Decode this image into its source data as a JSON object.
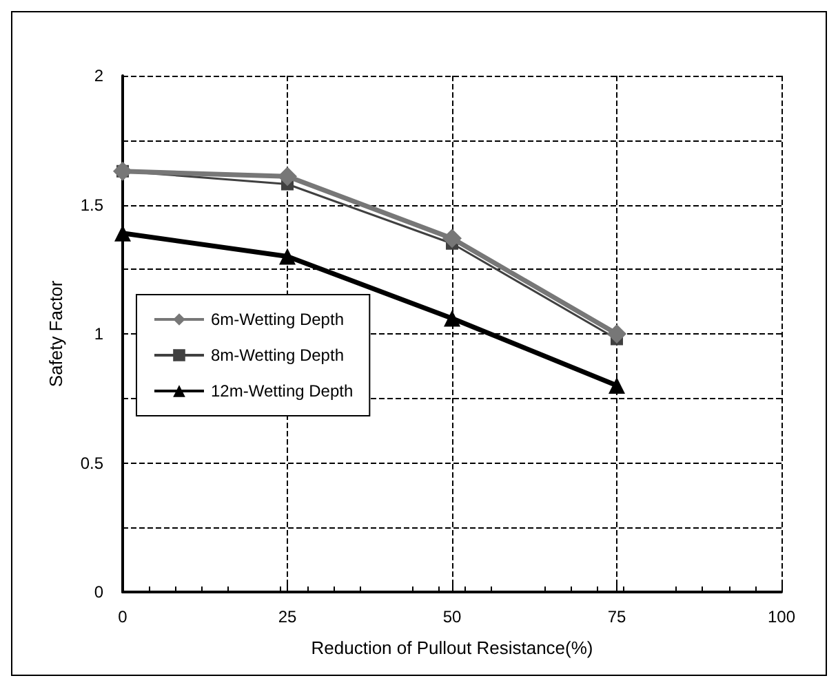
{
  "chart_data": {
    "type": "line",
    "xlabel": "Reduction of Pullout Resistance(%)",
    "ylabel": "Safety Factor",
    "x": [
      0,
      25,
      50,
      75
    ],
    "series": [
      {
        "name": "6m-Wetting Depth",
        "color": "#777777",
        "marker": "diamond",
        "values": [
          1.63,
          1.61,
          1.37,
          1.0
        ]
      },
      {
        "name": "8m-Wetting Depth",
        "color": "#404040",
        "marker": "square",
        "values": [
          1.63,
          1.58,
          1.35,
          0.98
        ]
      },
      {
        "name": "12m-Wetting Depth",
        "color": "#000000",
        "marker": "triangle",
        "values": [
          1.39,
          1.3,
          1.06,
          0.8
        ]
      }
    ],
    "xlim": [
      0,
      100
    ],
    "xticks": [
      0,
      25,
      50,
      75,
      100
    ],
    "ylim": [
      0,
      2
    ],
    "yticks": [
      0,
      {
        "value": 0.25,
        "label": null
      },
      0.5,
      {
        "value": 0.75,
        "label": null
      },
      1,
      {
        "value": 1.25,
        "label": null
      },
      1.5,
      {
        "value": 1.75,
        "label": null
      },
      2
    ],
    "grid": true,
    "legend": "left",
    "line_style": "solid"
  }
}
